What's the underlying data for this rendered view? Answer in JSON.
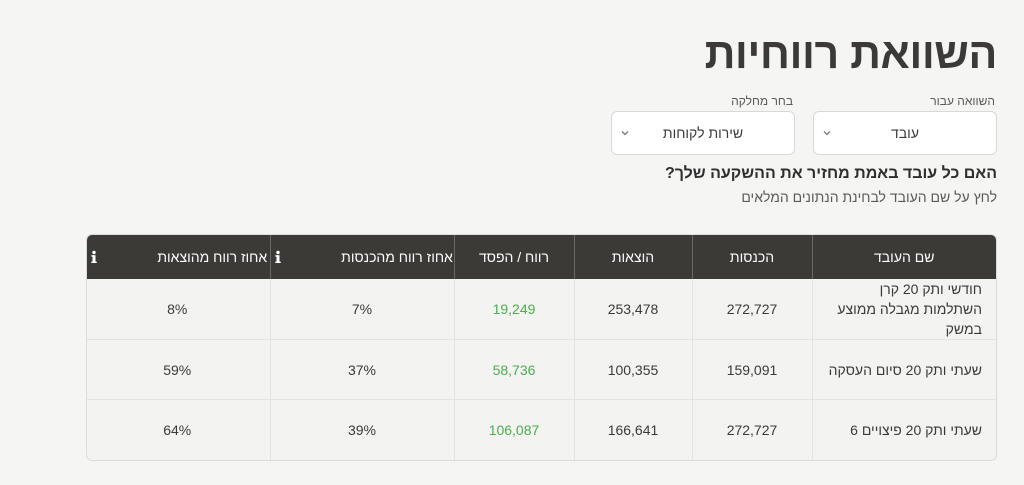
{
  "page": {
    "title": "השוואת רווחיות",
    "question": "האם כל עובד באמת מחזיר את ההשקעה שלך?",
    "subtext": "לחץ על שם העובד לבחינת הנתונים המלאים"
  },
  "filters": {
    "compare": {
      "label": "השוואה עבור",
      "value": "עובד"
    },
    "department": {
      "label": "בחר מחלקה",
      "value": "שירות לקוחות"
    }
  },
  "colors": {
    "header_bg": "#3b3a37",
    "profit": "#4caf50",
    "background": "#f5f5f3"
  },
  "table": {
    "headers": {
      "name": "שם העובד",
      "revenue": "הכנסות",
      "expenses": "הוצאות",
      "profit_loss": "רווח / הפסד",
      "profit_pct_revenue": "אחוז רווח מהכנסות",
      "profit_pct_expenses": "אחוז רווח מהוצאות"
    },
    "rows": [
      {
        "name": "חודשי ותק 20 קרן השתלמות מגבלה ממוצע במשק",
        "revenue": "272,727",
        "expenses": "253,478",
        "profit_loss": "19,249",
        "pct_revenue": "7%",
        "pct_expenses": "8%"
      },
      {
        "name": "שעתי ותק 20 סיום העסקה",
        "revenue": "159,091",
        "expenses": "100,355",
        "profit_loss": "58,736",
        "pct_revenue": "37%",
        "pct_expenses": "59%"
      },
      {
        "name": "שעתי ותק 20 פיצויים 6",
        "revenue": "272,727",
        "expenses": "166,641",
        "profit_loss": "106,087",
        "pct_revenue": "39%",
        "pct_expenses": "64%"
      }
    ]
  },
  "icons": {
    "info": "info-icon",
    "dropdown": "chevron-down-icon"
  }
}
